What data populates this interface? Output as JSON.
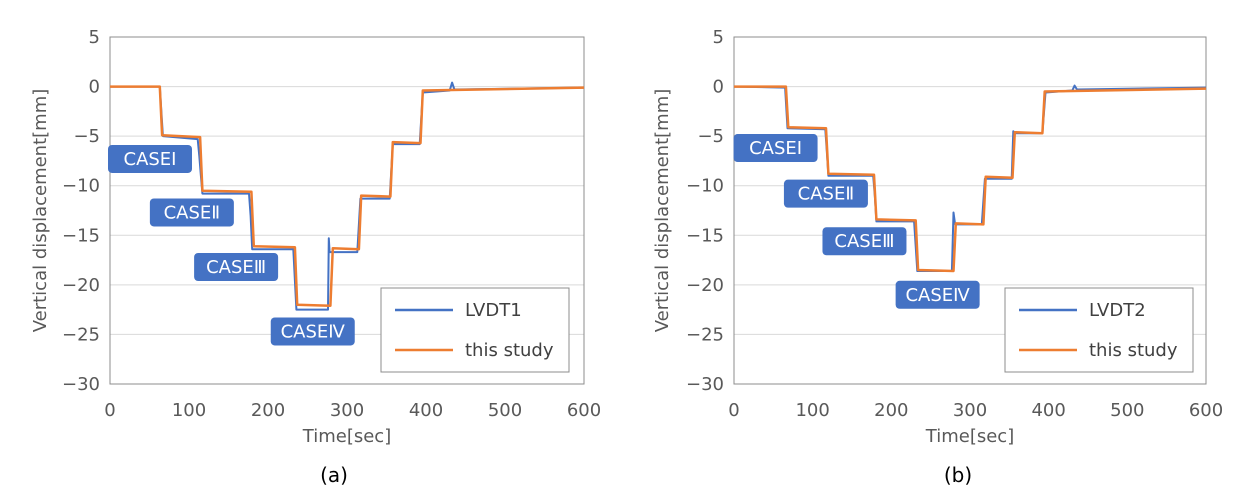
{
  "chart_data": [
    {
      "type": "line",
      "panel_label": "(a)",
      "xlabel": "Time[sec]",
      "ylabel": "Vertical displacement[mm]",
      "xlim": [
        0,
        600
      ],
      "ylim": [
        -30,
        5
      ],
      "xticks": [
        "0",
        "100",
        "200",
        "300",
        "400",
        "500",
        "600"
      ],
      "yticks": [
        "5",
        "0",
        "−5",
        "−10",
        "−15",
        "−20",
        "−25",
        "−30"
      ],
      "grid": "horizontal",
      "legend_position": "bottom-right",
      "colors": {
        "measured": "#4472C4",
        "study": "#ED7D31",
        "case_box": "#4472C4"
      },
      "cases": [
        {
          "label": "CASEⅠ",
          "x": 0,
          "y": -7.3
        },
        {
          "label": "CASEⅡ",
          "x": 53,
          "y": -12.7
        },
        {
          "label": "CASEⅢ",
          "x": 109,
          "y": -18.2
        },
        {
          "label": "CASEⅣ",
          "x": 206,
          "y": -24.7
        }
      ],
      "series": [
        {
          "name": "LVDT1",
          "x": [
            0,
            63,
            67,
            111,
            113,
            115,
            117,
            176,
            178,
            180,
            232,
            236,
            276,
            277,
            278,
            279,
            281,
            313,
            317,
            354,
            358,
            392,
            396,
            430,
            433,
            436,
            600
          ],
          "y": [
            0,
            0,
            -5.0,
            -5.3,
            -7.0,
            -9.0,
            -10.8,
            -10.8,
            -13.0,
            -16.4,
            -16.4,
            -22.5,
            -22.5,
            -15.3,
            -16.7,
            -16.7,
            -16.7,
            -16.7,
            -11.3,
            -11.3,
            -5.8,
            -5.8,
            -0.6,
            -0.4,
            0.4,
            -0.3,
            -0.1
          ]
        },
        {
          "name": "this study",
          "x": [
            0,
            63,
            66,
            114,
            117,
            179,
            182,
            234,
            237,
            279,
            282,
            315,
            318,
            355,
            358,
            393,
            396,
            600
          ],
          "y": [
            0,
            0,
            -4.9,
            -5.1,
            -10.5,
            -10.6,
            -16.1,
            -16.2,
            -22.0,
            -22.1,
            -16.3,
            -16.4,
            -11.0,
            -11.1,
            -5.6,
            -5.7,
            -0.4,
            -0.1
          ]
        }
      ]
    },
    {
      "type": "line",
      "panel_label": "(b)",
      "xlabel": "Time[sec]",
      "ylabel": "Vertical displacement[mm]",
      "xlim": [
        0,
        600
      ],
      "ylim": [
        -30,
        5
      ],
      "xticks": [
        "0",
        "100",
        "200",
        "300",
        "400",
        "500",
        "600"
      ],
      "yticks": [
        "5",
        "0",
        "−5",
        "−10",
        "−15",
        "−20",
        "−25",
        "−30"
      ],
      "grid": "horizontal",
      "legend_position": "bottom-right",
      "colors": {
        "measured": "#4472C4",
        "study": "#ED7D31",
        "case_box": "#4472C4"
      },
      "cases": [
        {
          "label": "CASEⅠ",
          "x": 2,
          "y": -6.2
        },
        {
          "label": "CASEⅡ",
          "x": 66,
          "y": -10.8
        },
        {
          "label": "CASEⅢ",
          "x": 115,
          "y": -15.6
        },
        {
          "label": "CASEⅣ",
          "x": 208,
          "y": -21.0
        }
      ],
      "series": [
        {
          "name": "LVDT2",
          "x": [
            0,
            65,
            68,
            116,
            118,
            120,
            177,
            179,
            181,
            229,
            233,
            277,
            279,
            281,
            315,
            319,
            353,
            355,
            357,
            392,
            396,
            430,
            433,
            436,
            600
          ],
          "y": [
            0,
            -0.1,
            -4.2,
            -4.3,
            -6.5,
            -9.0,
            -9.0,
            -11.0,
            -13.6,
            -13.6,
            -18.6,
            -18.6,
            -12.7,
            -13.9,
            -13.9,
            -9.3,
            -9.3,
            -4.5,
            -4.7,
            -4.7,
            -0.6,
            -0.4,
            0.1,
            -0.3,
            -0.1
          ]
        },
        {
          "name": "this study",
          "x": [
            0,
            66,
            69,
            117,
            120,
            178,
            181,
            231,
            234,
            279,
            282,
            317,
            320,
            354,
            357,
            392,
            395,
            600
          ],
          "y": [
            0,
            0,
            -4.1,
            -4.2,
            -8.8,
            -8.9,
            -13.4,
            -13.5,
            -18.5,
            -18.6,
            -13.8,
            -13.9,
            -9.1,
            -9.2,
            -4.6,
            -4.7,
            -0.5,
            -0.2
          ]
        }
      ]
    }
  ]
}
